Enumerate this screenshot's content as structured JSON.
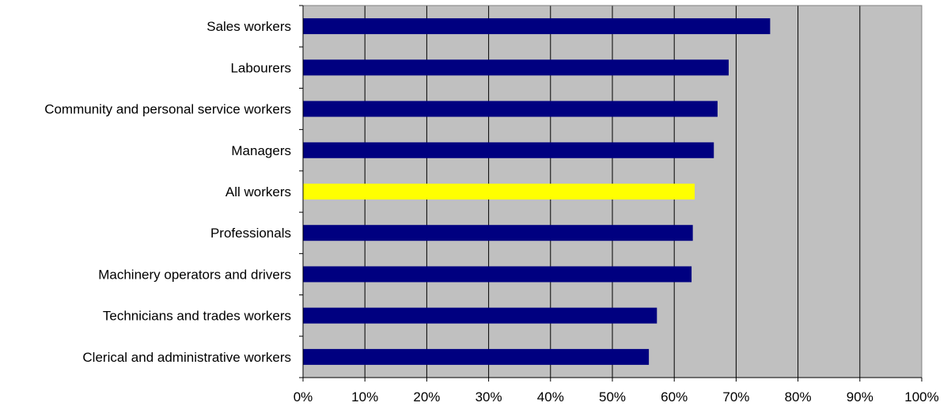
{
  "chart_data": {
    "type": "bar",
    "orientation": "horizontal",
    "categories": [
      "Sales workers",
      "Labourers",
      "Community and personal service workers",
      "Managers",
      "All workers ",
      "Professionals",
      "Machinery operators and drivers",
      "Technicians and trades workers",
      "Clerical and administrative workers"
    ],
    "values": [
      75.5,
      68.8,
      67.0,
      66.4,
      63.3,
      63.0,
      62.8,
      57.2,
      55.9
    ],
    "highlight_index": 4,
    "xlim": [
      0,
      100
    ],
    "x_ticks": [
      "0%",
      "10%",
      "20%",
      "30%",
      "40%",
      "50%",
      "60%",
      "70%",
      "80%",
      "90%",
      "100%"
    ],
    "grid": "vertical",
    "legend": "none",
    "colors": {
      "bar": "#000080",
      "highlight": "#ffff00",
      "plot_background": "#c0c0c0",
      "gridline": "#000000"
    }
  }
}
